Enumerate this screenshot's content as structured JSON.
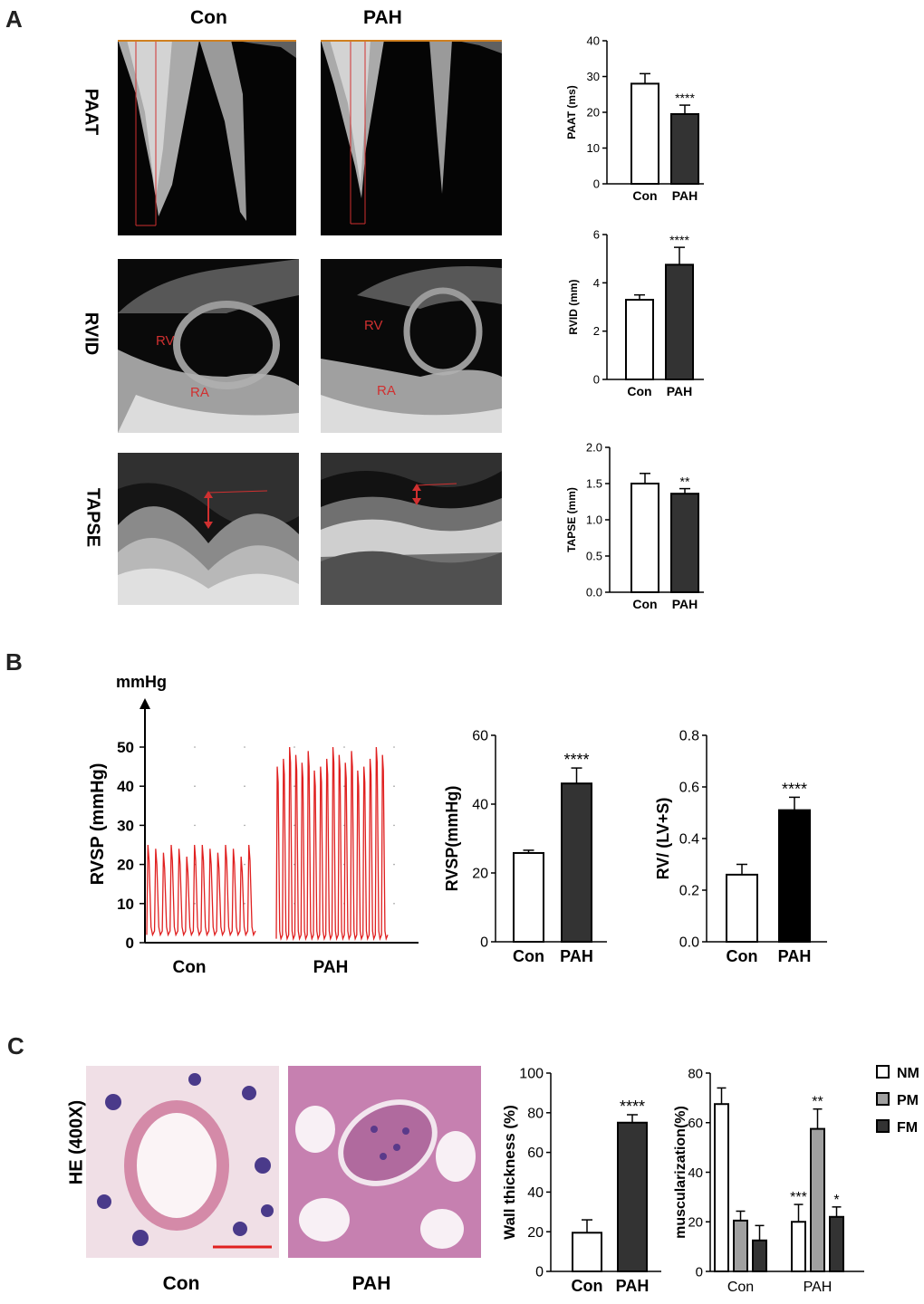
{
  "panel_letters": {
    "a": "A",
    "b": "B",
    "c": "C"
  },
  "section_a": {
    "col_titles": [
      "Con",
      "PAH"
    ],
    "row_labels": [
      "PAAT",
      "RVID",
      "TAPSE"
    ],
    "echo_annotations": {
      "rv": "RV",
      "ra": "RA"
    }
  },
  "section_b": {
    "trace_axis_unit": "mmHg",
    "trace_ylabel": "RVSP (mmHg)",
    "trace_ticks": [
      "0",
      "10",
      "20",
      "30",
      "40",
      "50"
    ],
    "trace_groups": [
      "Con",
      "PAH"
    ]
  },
  "section_c": {
    "stain_label": "HE (400X)",
    "image_labels": [
      "Con",
      "PAH"
    ]
  },
  "colors": {
    "con_bar": "#ffffff",
    "pah_bar": "#333333",
    "pm_bar": "#a0a0a0",
    "trace": "#e02020",
    "annotation_red": "#d03030"
  },
  "chart_data": [
    {
      "id": "paat",
      "type": "bar",
      "categories": [
        "Con",
        "PAH"
      ],
      "values": [
        28,
        19.5
      ],
      "errors": [
        2.8,
        2.5
      ],
      "ylabel": "PAAT (ms)",
      "ylim": [
        0,
        40
      ],
      "yticks": [
        "0",
        "10",
        "20",
        "30",
        "40"
      ],
      "significance": [
        "",
        "****"
      ]
    },
    {
      "id": "rvid",
      "type": "bar",
      "categories": [
        "Con",
        "PAH"
      ],
      "values": [
        3.3,
        4.75
      ],
      "errors": [
        0.2,
        0.72
      ],
      "ylabel": "RVID (mm)",
      "ylim": [
        0,
        6
      ],
      "yticks": [
        "0",
        "2",
        "4",
        "6"
      ],
      "significance": [
        "",
        "****"
      ]
    },
    {
      "id": "tapse",
      "type": "bar",
      "categories": [
        "Con",
        "PAH"
      ],
      "values": [
        1.5,
        1.36
      ],
      "errors": [
        0.14,
        0.07
      ],
      "ylabel": "TAPSE (mm)",
      "ylim": [
        0,
        2.0
      ],
      "yticks": [
        "0.0",
        "0.5",
        "1.0",
        "1.5",
        "2.0"
      ],
      "significance": [
        "",
        "**"
      ]
    },
    {
      "id": "rvsp",
      "type": "bar",
      "categories": [
        "Con",
        "PAH"
      ],
      "values": [
        25.8,
        46
      ],
      "errors": [
        0.8,
        4.5
      ],
      "ylabel": "RVSP(mmHg)",
      "ylim": [
        0,
        60
      ],
      "yticks": [
        "0",
        "20",
        "40",
        "60"
      ],
      "significance": [
        "",
        "****"
      ]
    },
    {
      "id": "rvlvs",
      "type": "bar",
      "categories": [
        "Con",
        "PAH"
      ],
      "values": [
        0.26,
        0.51
      ],
      "errors": [
        0.04,
        0.05
      ],
      "ylabel": "RV/ (LV+S)",
      "ylim": [
        0,
        0.8
      ],
      "yticks": [
        "0.0",
        "0.2",
        "0.4",
        "0.6",
        "0.8"
      ],
      "significance": [
        "",
        "****"
      ]
    },
    {
      "id": "wall",
      "type": "bar",
      "categories": [
        "Con",
        "PAH"
      ],
      "values": [
        19.5,
        75
      ],
      "errors": [
        6.5,
        4
      ],
      "ylabel": "Wall thickness (%)",
      "ylim": [
        0,
        100
      ],
      "yticks": [
        "0",
        "20",
        "40",
        "60",
        "80",
        "100"
      ],
      "significance": [
        "",
        "****"
      ]
    },
    {
      "id": "musc",
      "type": "bar",
      "categories": [
        "Con",
        "PAH"
      ],
      "series": [
        {
          "name": "NM",
          "values": [
            67.5,
            20
          ],
          "errors": [
            6.5,
            7
          ],
          "significance": [
            "",
            "***"
          ]
        },
        {
          "name": "PM",
          "values": [
            20.5,
            57.5
          ],
          "errors": [
            3.8,
            8
          ],
          "significance": [
            "",
            "**"
          ]
        },
        {
          "name": "FM",
          "values": [
            12.5,
            22
          ],
          "errors": [
            6,
            4
          ],
          "significance": [
            "",
            "*"
          ]
        }
      ],
      "ylabel": "muscularization(%)",
      "ylim": [
        0,
        80
      ],
      "yticks": [
        "0",
        "20",
        "40",
        "60",
        "80"
      ],
      "legend": "top-right"
    }
  ]
}
